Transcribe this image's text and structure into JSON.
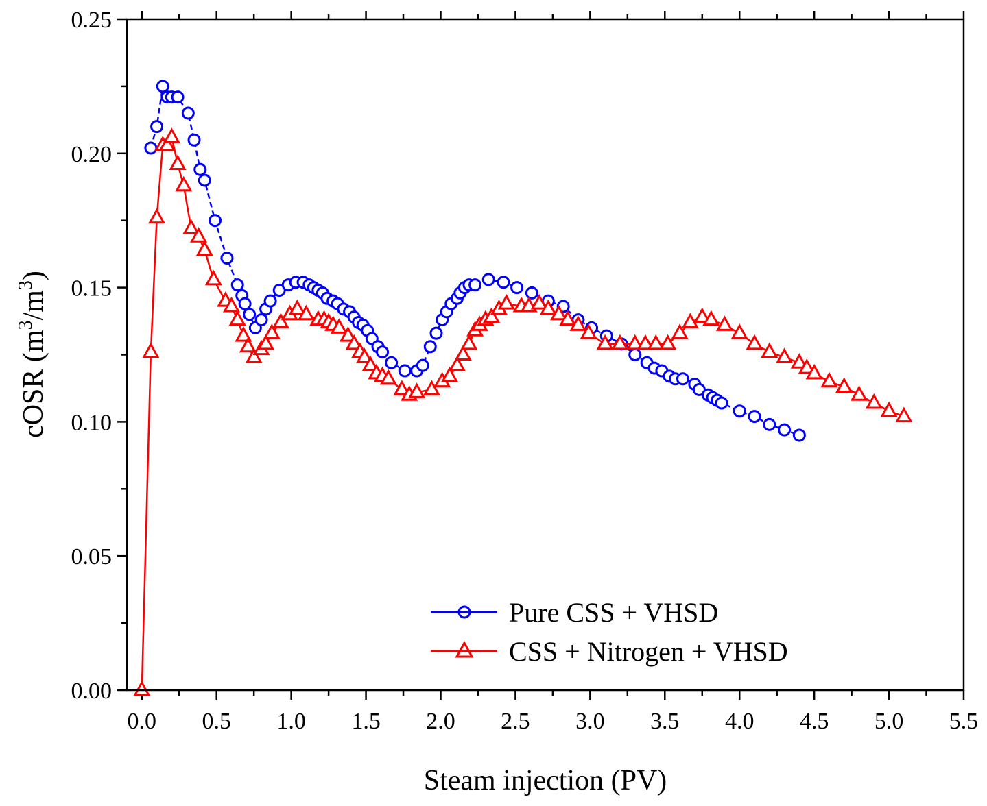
{
  "chart_data": {
    "type": "line",
    "title": "",
    "xlabel": "Steam injection (PV)",
    "ylabel": {
      "main": "cOSR (m",
      "sup1": "3",
      "mid": "/m",
      "sup2": "3",
      "end": ")"
    },
    "xlim": [
      -0.1,
      5.5
    ],
    "ylim": [
      0.0,
      0.25
    ],
    "xticks": [
      0.0,
      0.5,
      1.0,
      1.5,
      2.0,
      2.5,
      3.0,
      3.5,
      4.0,
      4.5,
      5.0,
      5.5
    ],
    "xtick_labels": [
      "0.0",
      "0.5",
      "1.0",
      "1.5",
      "2.0",
      "2.5",
      "3.0",
      "3.5",
      "4.0",
      "4.5",
      "5.0",
      "5.5"
    ],
    "yticks": [
      0.0,
      0.05,
      0.1,
      0.15,
      0.2,
      0.25
    ],
    "ytick_labels": [
      "0.00",
      "0.05",
      "0.10",
      "0.15",
      "0.20",
      "0.25"
    ],
    "grid": false,
    "legend_position": "bottom-right",
    "series": [
      {
        "name": "Pure CSS + VHSD",
        "color": "#0000ff",
        "marker": "circle",
        "line": "dashed",
        "x": [
          0.06,
          0.1,
          0.14,
          0.17,
          0.2,
          0.24,
          0.31,
          0.35,
          0.39,
          0.42,
          0.49,
          0.57,
          0.64,
          0.67,
          0.69,
          0.72,
          0.76,
          0.8,
          0.83,
          0.86,
          0.92,
          0.98,
          1.03,
          1.08,
          1.12,
          1.15,
          1.18,
          1.21,
          1.24,
          1.28,
          1.31,
          1.35,
          1.39,
          1.42,
          1.45,
          1.48,
          1.51,
          1.54,
          1.58,
          1.61,
          1.67,
          1.76,
          1.84,
          1.88,
          1.93,
          1.97,
          2.01,
          2.04,
          2.07,
          2.11,
          2.13,
          2.16,
          2.19,
          2.23,
          2.32,
          2.42,
          2.51,
          2.61,
          2.72,
          2.82,
          2.92,
          3.01,
          3.11,
          3.21,
          3.3,
          3.38,
          3.43,
          3.48,
          3.53,
          3.57,
          3.62,
          3.7,
          3.73,
          3.79,
          3.82,
          3.85,
          3.88,
          4.0,
          4.1,
          4.2,
          4.3,
          4.4
        ],
        "y": [
          0.202,
          0.21,
          0.225,
          0.221,
          0.221,
          0.221,
          0.215,
          0.205,
          0.194,
          0.19,
          0.175,
          0.161,
          0.151,
          0.147,
          0.144,
          0.14,
          0.135,
          0.138,
          0.142,
          0.145,
          0.149,
          0.151,
          0.152,
          0.152,
          0.151,
          0.15,
          0.149,
          0.148,
          0.146,
          0.145,
          0.144,
          0.142,
          0.141,
          0.139,
          0.137,
          0.136,
          0.134,
          0.131,
          0.128,
          0.126,
          0.122,
          0.119,
          0.119,
          0.121,
          0.128,
          0.133,
          0.138,
          0.141,
          0.144,
          0.146,
          0.148,
          0.15,
          0.151,
          0.151,
          0.153,
          0.152,
          0.15,
          0.148,
          0.145,
          0.143,
          0.138,
          0.135,
          0.132,
          0.129,
          0.125,
          0.122,
          0.12,
          0.119,
          0.117,
          0.116,
          0.116,
          0.114,
          0.112,
          0.11,
          0.109,
          0.108,
          0.107,
          0.104,
          0.102,
          0.099,
          0.097,
          0.095
        ]
      },
      {
        "name": "CSS + Nitrogen + VHSD",
        "color": "#ff0000",
        "marker": "triangle",
        "line": "solid",
        "x": [
          0.0,
          0.06,
          0.1,
          0.14,
          0.17,
          0.2,
          0.24,
          0.28,
          0.33,
          0.38,
          0.42,
          0.48,
          0.56,
          0.6,
          0.64,
          0.68,
          0.71,
          0.75,
          0.8,
          0.83,
          0.87,
          0.93,
          0.99,
          1.04,
          1.1,
          1.18,
          1.22,
          1.25,
          1.28,
          1.32,
          1.38,
          1.42,
          1.46,
          1.49,
          1.53,
          1.57,
          1.61,
          1.65,
          1.74,
          1.79,
          1.84,
          1.94,
          2.01,
          2.06,
          2.11,
          2.15,
          2.19,
          2.23,
          2.26,
          2.3,
          2.34,
          2.39,
          2.44,
          2.54,
          2.59,
          2.66,
          2.72,
          2.79,
          2.85,
          2.92,
          2.99,
          3.1,
          3.2,
          3.3,
          3.37,
          3.44,
          3.52,
          3.6,
          3.67,
          3.75,
          3.81,
          3.9,
          4.0,
          4.1,
          4.2,
          4.3,
          4.4,
          4.45,
          4.5,
          4.6,
          4.7,
          4.8,
          4.9,
          5.0,
          5.1
        ],
        "y": [
          0.0,
          0.126,
          0.176,
          0.203,
          0.203,
          0.206,
          0.196,
          0.188,
          0.172,
          0.169,
          0.164,
          0.153,
          0.145,
          0.143,
          0.138,
          0.132,
          0.128,
          0.124,
          0.127,
          0.129,
          0.133,
          0.137,
          0.14,
          0.142,
          0.14,
          0.138,
          0.138,
          0.137,
          0.136,
          0.135,
          0.132,
          0.129,
          0.126,
          0.124,
          0.121,
          0.118,
          0.117,
          0.116,
          0.112,
          0.11,
          0.111,
          0.112,
          0.115,
          0.117,
          0.121,
          0.125,
          0.129,
          0.134,
          0.136,
          0.138,
          0.139,
          0.142,
          0.144,
          0.143,
          0.143,
          0.144,
          0.142,
          0.14,
          0.138,
          0.136,
          0.133,
          0.129,
          0.129,
          0.129,
          0.129,
          0.129,
          0.129,
          0.133,
          0.137,
          0.139,
          0.138,
          0.136,
          0.133,
          0.129,
          0.126,
          0.124,
          0.122,
          0.12,
          0.118,
          0.115,
          0.113,
          0.11,
          0.107,
          0.104,
          0.102
        ]
      }
    ]
  }
}
